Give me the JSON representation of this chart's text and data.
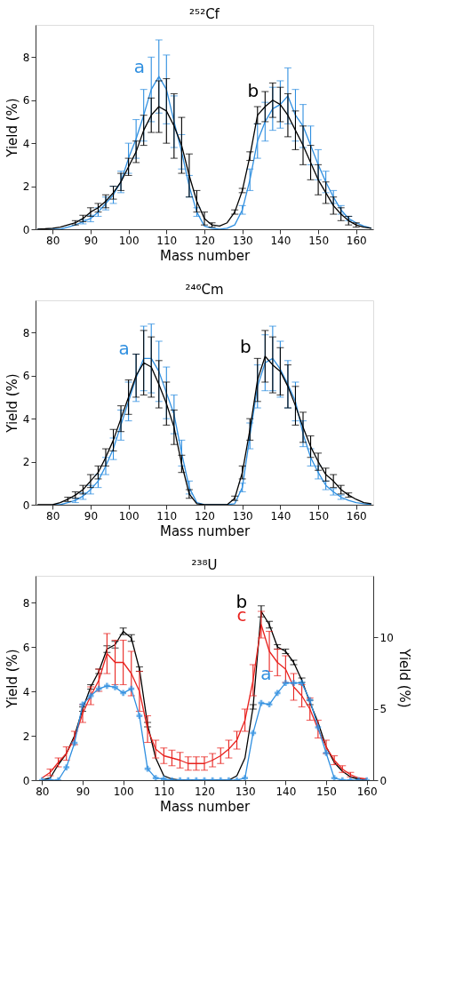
{
  "chart_data": [
    {
      "type": "line",
      "title": "²⁵²Cf",
      "xlabel": "Mass number",
      "ylabel": "Yield (%)",
      "x": [
        76,
        78,
        80,
        82,
        84,
        86,
        88,
        90,
        92,
        94,
        96,
        98,
        100,
        102,
        104,
        106,
        108,
        110,
        112,
        114,
        116,
        118,
        120,
        122,
        124,
        126,
        128,
        130,
        132,
        134,
        136,
        138,
        140,
        142,
        144,
        146,
        148,
        150,
        152,
        154,
        156,
        158,
        160,
        162,
        164
      ],
      "xlim": [
        75.5,
        164.5
      ],
      "xticks": [
        80,
        90,
        100,
        110,
        120,
        130,
        140,
        150,
        160
      ],
      "ylim": [
        0,
        9.5
      ],
      "yticks": [
        0,
        2,
        4,
        6,
        8
      ],
      "grid": false,
      "series": [
        {
          "name": "a",
          "color": "#2f8fe0",
          "values": [
            0,
            0,
            0,
            0,
            0.1,
            0.2,
            0.35,
            0.5,
            0.8,
            1.2,
            1.6,
            2.2,
            3.3,
            4.2,
            5.3,
            6.5,
            7.1,
            6.5,
            5.0,
            3.6,
            2.0,
            0.8,
            0.15,
            0.05,
            0,
            0.05,
            0.2,
            0.9,
            2.3,
            4.1,
            5.0,
            5.6,
            5.8,
            6.2,
            5.3,
            4.8,
            3.9,
            3.0,
            2.2,
            1.5,
            0.9,
            0.5,
            0.3,
            0.15,
            0.05
          ],
          "errors": [
            null,
            null,
            null,
            null,
            null,
            null,
            0.1,
            0.15,
            0.2,
            0.3,
            0.4,
            0.5,
            0.7,
            0.9,
            1.2,
            1.5,
            1.7,
            1.6,
            1.2,
            0.8,
            0.5,
            0.2,
            null,
            null,
            null,
            null,
            null,
            0.2,
            0.5,
            0.8,
            0.9,
            1.0,
            1.1,
            1.3,
            1.2,
            1.0,
            0.9,
            0.7,
            0.5,
            0.3,
            0.2,
            0.1,
            null,
            null,
            null
          ]
        },
        {
          "name": "b",
          "color": "#000000",
          "values": [
            0.0,
            0.02,
            0.05,
            0.1,
            0.2,
            0.3,
            0.5,
            0.8,
            1.0,
            1.3,
            1.7,
            2.2,
            2.9,
            3.6,
            4.6,
            5.3,
            5.7,
            5.5,
            4.8,
            3.9,
            2.5,
            1.3,
            0.5,
            0.2,
            0.15,
            0.3,
            0.8,
            1.8,
            3.4,
            5.3,
            5.7,
            6.0,
            5.8,
            5.3,
            4.6,
            3.9,
            3.1,
            2.3,
            1.7,
            1.1,
            0.7,
            0.4,
            0.2,
            0.1,
            0.05
          ],
          "errors": [
            null,
            null,
            null,
            null,
            null,
            0.1,
            0.15,
            0.2,
            0.2,
            0.3,
            0.3,
            0.4,
            0.4,
            0.5,
            0.7,
            0.8,
            1.2,
            1.5,
            1.5,
            1.3,
            1.0,
            0.5,
            0.3,
            0.1,
            null,
            null,
            0.1,
            0.1,
            0.2,
            0.4,
            0.7,
            0.8,
            0.8,
            1.0,
            0.9,
            0.9,
            0.8,
            0.7,
            0.5,
            0.4,
            0.3,
            0.2,
            0.1,
            null,
            null
          ]
        }
      ]
    },
    {
      "type": "line",
      "title": "²⁴⁶Cm",
      "xlabel": "Mass number",
      "ylabel": "Yield (%)",
      "x": [
        76,
        78,
        80,
        82,
        84,
        86,
        88,
        90,
        92,
        94,
        96,
        98,
        100,
        102,
        104,
        106,
        108,
        110,
        112,
        114,
        116,
        118,
        120,
        122,
        124,
        126,
        128,
        130,
        132,
        134,
        136,
        138,
        140,
        142,
        144,
        146,
        148,
        150,
        152,
        154,
        156,
        158,
        160,
        162,
        164
      ],
      "xlim": [
        75.5,
        164.5
      ],
      "xticks": [
        80,
        90,
        100,
        110,
        120,
        130,
        140,
        150,
        160
      ],
      "ylim": [
        0,
        9.5
      ],
      "yticks": [
        0,
        2,
        4,
        6,
        8
      ],
      "grid": false,
      "series": [
        {
          "name": "a",
          "color": "#2f8fe0",
          "values": [
            null,
            null,
            0,
            0,
            0.1,
            0.2,
            0.4,
            0.7,
            1.1,
            1.8,
            2.6,
            3.7,
            4.8,
            5.9,
            6.8,
            6.8,
            6.2,
            5.2,
            4.2,
            2.4,
            0.8,
            0.1,
            0,
            0,
            0,
            0,
            0.05,
            0.8,
            3.2,
            5.5,
            6.6,
            6.8,
            6.3,
            5.6,
            4.8,
            3.3,
            2.2,
            1.5,
            0.9,
            0.6,
            0.35,
            0.2,
            0.1,
            0.05,
            0
          ],
          "errors": [
            null,
            null,
            null,
            null,
            null,
            0.1,
            0.15,
            0.2,
            0.3,
            0.4,
            0.5,
            0.7,
            0.9,
            1.1,
            1.5,
            1.6,
            1.4,
            1.2,
            0.9,
            0.6,
            0.3,
            null,
            null,
            null,
            null,
            null,
            null,
            0.2,
            0.6,
            1.0,
            1.3,
            1.5,
            1.3,
            1.1,
            0.9,
            0.6,
            0.4,
            0.3,
            0.2,
            0.15,
            0.1,
            null,
            null,
            null,
            null
          ]
        },
        {
          "name": "b",
          "color": "#000000",
          "values": [
            0,
            0,
            0,
            0.1,
            0.25,
            0.45,
            0.7,
            1.1,
            1.5,
            2.2,
            3.0,
            4.0,
            5.0,
            6.0,
            6.6,
            6.4,
            5.6,
            4.7,
            3.6,
            1.9,
            0.5,
            0.05,
            0,
            0,
            0,
            0,
            0.3,
            1.5,
            3.5,
            5.8,
            6.9,
            6.5,
            6.2,
            5.5,
            4.6,
            3.6,
            2.7,
            2.0,
            1.4,
            1.1,
            0.7,
            0.45,
            0.25,
            0.1,
            0.05
          ],
          "errors": [
            null,
            null,
            null,
            null,
            0.1,
            0.15,
            0.2,
            0.3,
            0.3,
            0.4,
            0.5,
            0.6,
            0.8,
            1.0,
            1.5,
            1.4,
            1.1,
            1.0,
            0.8,
            0.4,
            0.2,
            null,
            null,
            null,
            null,
            null,
            0.1,
            0.3,
            0.5,
            1.0,
            1.2,
            1.3,
            1.1,
            1.0,
            0.9,
            0.7,
            0.5,
            0.4,
            0.3,
            0.3,
            0.2,
            0.1,
            null,
            null,
            null
          ]
        }
      ]
    },
    {
      "type": "line",
      "title": "²³⁸U",
      "xlabel": "Mass number",
      "ylabel": "Yield (%)",
      "y2label": "Yield (%)",
      "x": [
        80,
        82,
        84,
        86,
        88,
        90,
        92,
        94,
        96,
        98,
        100,
        102,
        104,
        106,
        108,
        110,
        112,
        114,
        116,
        118,
        120,
        122,
        124,
        126,
        128,
        130,
        132,
        134,
        136,
        138,
        140,
        142,
        144,
        146,
        148,
        150,
        152,
        154,
        156,
        158,
        160
      ],
      "xlim": [
        78.4,
        161.6
      ],
      "xticks": [
        80,
        90,
        100,
        110,
        120,
        130,
        140,
        150,
        160
      ],
      "ylim": [
        0,
        9.2
      ],
      "yticks": [
        0,
        2,
        4,
        6,
        8
      ],
      "y2lim": [
        0,
        14.3
      ],
      "y2ticks": [
        0,
        5,
        10
      ],
      "grid": false,
      "series": [
        {
          "name": "a",
          "color": "#2f8fe0",
          "axis": "y2",
          "marker": "cross",
          "values": [
            0,
            0,
            0,
            0.9,
            2.6,
            5.3,
            5.9,
            6.4,
            6.6,
            6.5,
            6.1,
            6.4,
            4.5,
            0.8,
            0.15,
            0.08,
            0,
            0,
            0,
            0,
            0,
            0,
            0,
            0,
            0,
            0.15,
            3.3,
            5.4,
            5.3,
            6.1,
            6.8,
            6.8,
            6.8,
            5.6,
            3.7,
            1.9,
            0.15,
            0,
            0,
            0,
            0
          ]
        },
        {
          "name": "b",
          "color": "#000000",
          "values": [
            0,
            0.1,
            0.7,
            1.2,
            2.0,
            3.2,
            4.2,
            4.9,
            5.9,
            6.1,
            6.7,
            6.4,
            5.0,
            2.5,
            1.0,
            0.2,
            0.05,
            0,
            0,
            0,
            0,
            0,
            0,
            0,
            0.2,
            1.0,
            3.3,
            7.6,
            7.0,
            6.0,
            5.8,
            5.3,
            4.5,
            3.5,
            2.6,
            1.5,
            0.8,
            0.4,
            0.15,
            0.05,
            0
          ],
          "errors": [
            null,
            null,
            null,
            null,
            null,
            0.1,
            0.1,
            0.1,
            0.15,
            0.15,
            0.15,
            0.15,
            0.1,
            0.1,
            null,
            null,
            null,
            null,
            null,
            null,
            null,
            null,
            null,
            null,
            null,
            null,
            0.1,
            0.25,
            0.15,
            0.1,
            0.1,
            0.1,
            0.1,
            0.1,
            null,
            null,
            null,
            null,
            null,
            null,
            null
          ]
        },
        {
          "name": "c",
          "color": "#e8231f",
          "values": [
            0.1,
            0.35,
            0.8,
            1.2,
            1.9,
            3.0,
            3.8,
            4.5,
            5.7,
            5.3,
            5.3,
            4.8,
            4.0,
            2.3,
            1.4,
            1.1,
            1.0,
            0.9,
            0.75,
            0.75,
            0.75,
            0.9,
            1.1,
            1.4,
            1.8,
            2.7,
            4.5,
            7.0,
            5.8,
            5.3,
            5.0,
            4.2,
            3.8,
            3.2,
            2.3,
            1.5,
            0.9,
            0.5,
            0.25,
            0.1,
            0.05
          ],
          "errors": [
            null,
            0.15,
            0.2,
            0.3,
            0.3,
            0.4,
            0.4,
            0.5,
            0.9,
            1.0,
            1.0,
            1.0,
            0.9,
            0.6,
            0.4,
            0.35,
            0.35,
            0.35,
            0.3,
            0.3,
            0.3,
            0.3,
            0.35,
            0.4,
            0.4,
            0.5,
            0.7,
            0.6,
            0.9,
            0.6,
            0.6,
            0.6,
            0.5,
            0.5,
            0.4,
            0.3,
            0.2,
            0.15,
            0.1,
            null,
            null
          ]
        }
      ]
    }
  ]
}
